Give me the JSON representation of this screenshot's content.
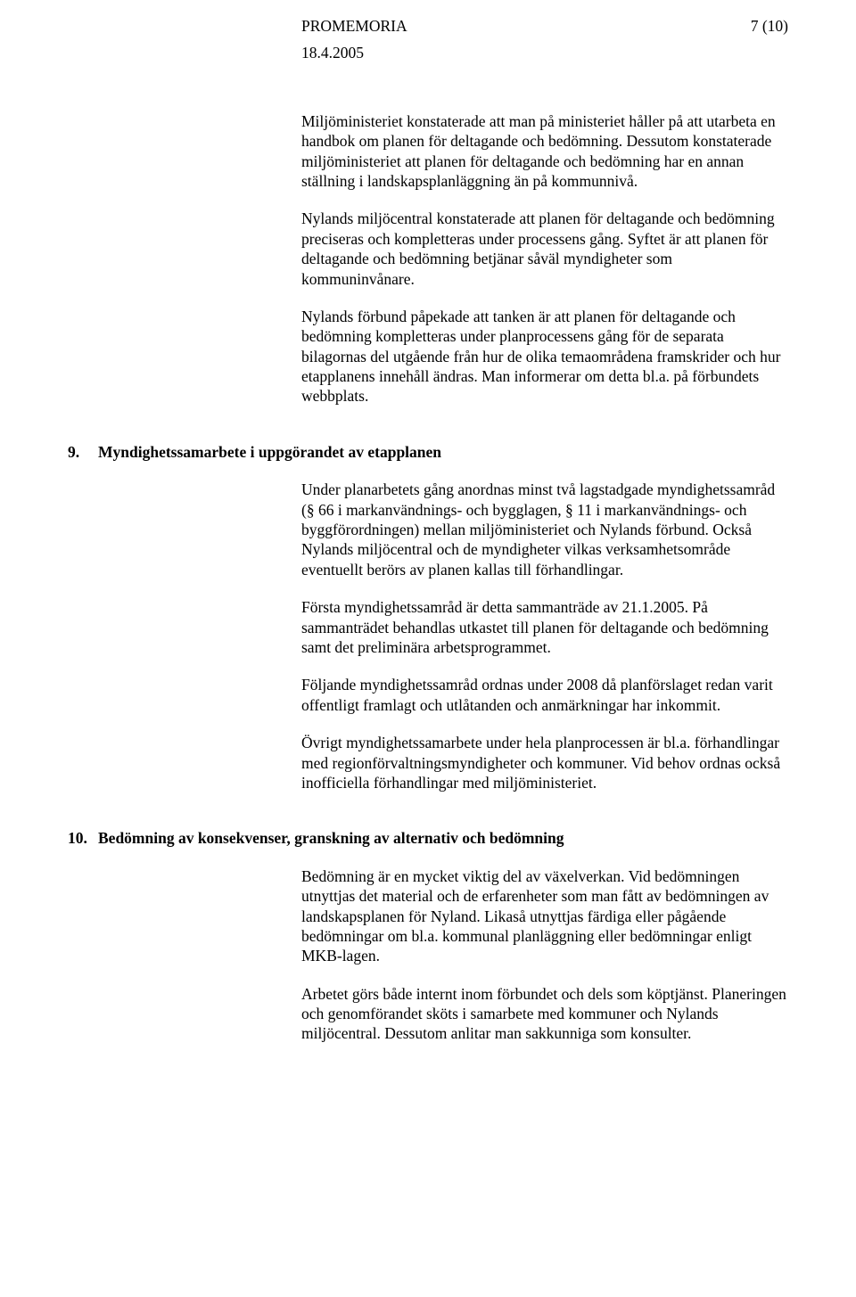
{
  "header": {
    "doc_type": "PROMEMORIA",
    "page_indicator": "7 (10)",
    "date": "18.4.2005"
  },
  "intro_paragraphs": [
    "Miljöministeriet konstaterade att man på ministeriet håller på att utarbeta en handbok om planen för deltagande och bedömning. Dessutom konstaterade miljöministeriet att planen för deltagande och bedömning har en annan ställning i landskapsplanläggning än på kommunnivå.",
    "Nylands miljöcentral konstaterade att planen för deltagande och bedömning preciseras och kompletteras under processens gång. Syftet är att planen för deltagande och bedömning betjänar såväl myndigheter som kommuninvånare.",
    "Nylands förbund påpekade att tanken är att planen för deltagande och bedömning kompletteras under planprocessens gång för de separata bilagornas del utgående från hur de olika temaområdena framskrider och hur etapplanens innehåll ändras. Man informerar om detta bl.a. på förbundets webbplats."
  ],
  "section9": {
    "number": "9.",
    "title": "Myndighetssamarbete i uppgörandet av etapplanen",
    "paragraphs": [
      "Under planarbetets gång anordnas minst två lagstadgade myndighetssamråd (§ 66 i markanvändnings- och bygglagen, § 11 i markanvändnings- och byggförordningen) mellan miljöministeriet och Nylands förbund. Också Nylands miljöcentral och de myndigheter vilkas verksamhetsområde eventuellt berörs av planen kallas till förhandlingar.",
      "Första myndighetssamråd är detta sammanträde av 21.1.2005. På sammanträdet behandlas utkastet till planen för deltagande och bedömning samt det preliminära arbetsprogrammet.",
      "Följande myndighetssamråd ordnas under 2008 då planförslaget redan varit offentligt framlagt och utlåtanden och anmärkningar har inkommit.",
      "Övrigt myndighetssamarbete under hela planprocessen är bl.a. förhandlingar med regionförvaltningsmyndigheter och kommuner. Vid behov ordnas också inofficiella förhandlingar med miljöministeriet."
    ]
  },
  "section10": {
    "number": "10.",
    "title": "Bedömning av konsekvenser, granskning av alternativ och bedömning",
    "paragraphs": [
      "Bedömning är en mycket viktig del av växelverkan. Vid bedömningen utnyttjas det material och de erfarenheter som man fått av bedömningen av landskapsplanen för Nyland. Likaså utnyttjas färdiga eller pågående bedömningar om bl.a. kommunal planläggning eller bedömningar enligt MKB-lagen.",
      "Arbetet görs både internt inom förbundet och dels som köptjänst. Planeringen och genomförandet sköts i samarbete med kommuner och Nylands miljöcentral. Dessutom anlitar man sakkunniga som konsulter."
    ]
  }
}
